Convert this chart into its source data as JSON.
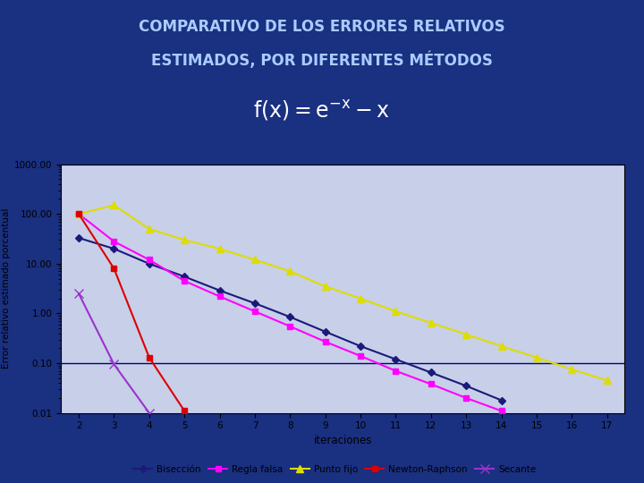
{
  "title_line1": "COMPARATIVO DE LOS ERRORES RELATIVOS",
  "title_line2": "ESTIMADOS, POR DIFERENTES MÉTODOS",
  "xlabel": "iteraciones",
  "ylabel": "Error relativo estimado porcentual",
  "header_bg": "#0d1f6b",
  "plot_bg": "#c8cfe8",
  "figure_bg": "#c8cfe8",
  "outer_bg": "#1a3080",
  "hline_y": 0.1,
  "hline_color": "#000080",
  "x_ticks": [
    2,
    3,
    4,
    5,
    6,
    7,
    8,
    9,
    10,
    11,
    12,
    13,
    14,
    15,
    16,
    17
  ],
  "ylim_log": [
    0.01,
    1000.0
  ],
  "yticks": [
    0.01,
    0.1,
    1.0,
    10.0,
    100.0,
    1000.0
  ],
  "ytick_labels": [
    "0.01",
    "0.10",
    "1.00",
    "10.00",
    "100.00",
    "1000.00"
  ],
  "series": {
    "Biseccion": {
      "label": "Bisección",
      "x": [
        2,
        3,
        4,
        5,
        6,
        7,
        8,
        9,
        10,
        11,
        12,
        13,
        14
      ],
      "y": [
        33,
        20,
        10,
        5.5,
        2.9,
        1.6,
        0.85,
        0.43,
        0.22,
        0.12,
        0.065,
        0.035,
        0.018
      ],
      "color": "#1a1a7a",
      "marker": "D",
      "markersize": 4,
      "linewidth": 1.5
    },
    "ReglaFalsa": {
      "label": "Regla falsa",
      "x": [
        2,
        3,
        4,
        5,
        6,
        7,
        8,
        9,
        10,
        11,
        12,
        13,
        14
      ],
      "y": [
        100,
        28,
        12,
        4.5,
        2.2,
        1.1,
        0.55,
        0.27,
        0.14,
        0.07,
        0.038,
        0.02,
        0.011
      ],
      "color": "#FF00FF",
      "marker": "s",
      "markersize": 5,
      "linewidth": 1.5
    },
    "PuntoFijo": {
      "label": "Punto fijo",
      "x": [
        2,
        3,
        4,
        5,
        6,
        7,
        8,
        9,
        10,
        11,
        12,
        13,
        14,
        15,
        16,
        17
      ],
      "y": [
        100,
        150,
        50,
        30,
        20,
        12,
        7,
        3.5,
        2.0,
        1.1,
        0.65,
        0.38,
        0.22,
        0.13,
        0.075,
        0.045
      ],
      "color": "#DDDD00",
      "marker": "^",
      "markersize": 6,
      "linewidth": 1.5
    },
    "NewtonRaphson": {
      "label": "Newton-Raphson",
      "x": [
        2,
        3,
        4,
        5
      ],
      "y": [
        100,
        8,
        0.13,
        0.011
      ],
      "color": "#DD0000",
      "marker": "s",
      "markersize": 5,
      "linewidth": 1.5
    },
    "Secante": {
      "label": "Secante",
      "x": [
        2,
        3,
        4
      ],
      "y": [
        2.5,
        0.095,
        0.01
      ],
      "color": "#9933CC",
      "marker": "x",
      "markersize": 7,
      "linewidth": 1.5
    }
  }
}
